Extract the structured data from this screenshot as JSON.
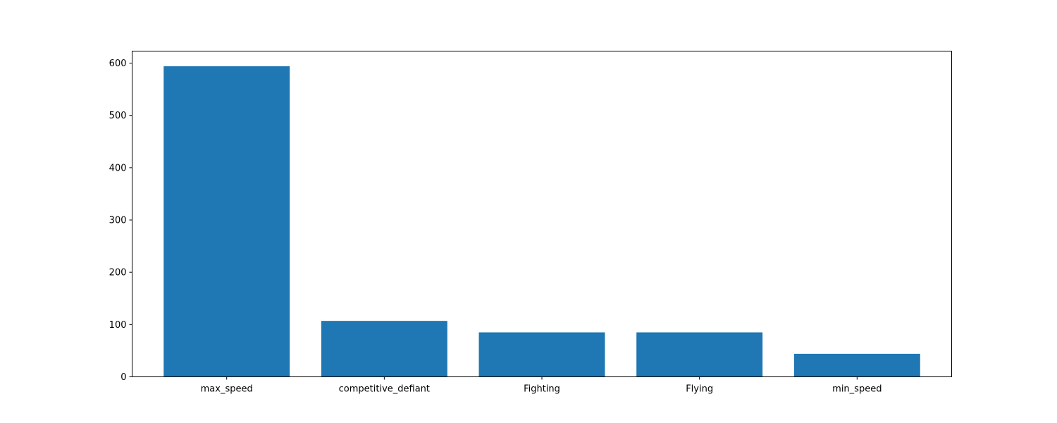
{
  "chart_data": {
    "type": "bar",
    "title": "",
    "xlabel": "",
    "ylabel": "",
    "categories": [
      "max_speed",
      "competitive_defiant",
      "Fighting",
      "Flying",
      "min_speed"
    ],
    "values": [
      594,
      107,
      85,
      85,
      44
    ],
    "ylim": [
      0,
      623
    ],
    "yticks": [
      0,
      100,
      200,
      300,
      400,
      500,
      600
    ],
    "grid": false,
    "legend": "none",
    "bar_color": "#1f77b4"
  }
}
